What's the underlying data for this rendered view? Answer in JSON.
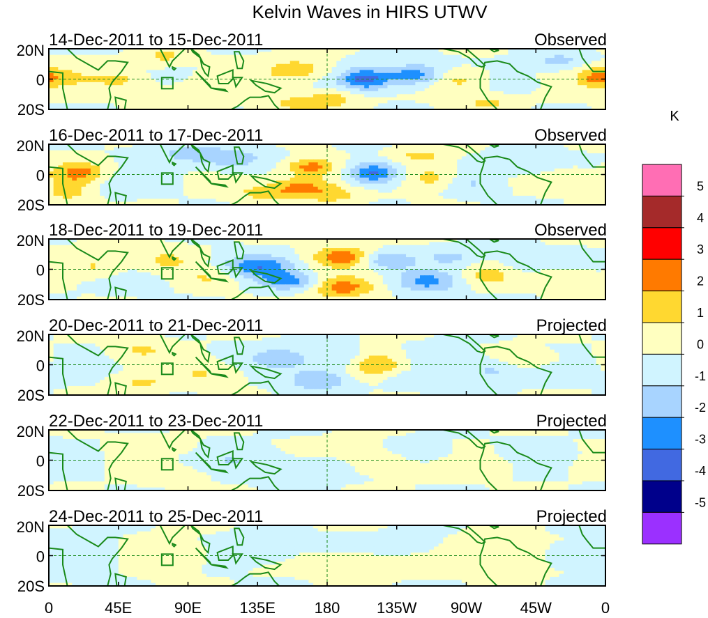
{
  "chart_data": {
    "type": "heatmap",
    "title": "Kelvin Waves in HIRS UTWV",
    "colorbar": {
      "unit": "K",
      "labels": [
        "5",
        "4",
        "3",
        "2",
        "1",
        "0",
        "-1",
        "-2",
        "-3",
        "-4",
        "-5"
      ],
      "bins": [
        {
          "range": ">5",
          "color": "#ff6eb4"
        },
        {
          "range": "4 to 5",
          "color": "#a52a2a"
        },
        {
          "range": "3 to 4",
          "color": "#ff0000"
        },
        {
          "range": "2 to 3",
          "color": "#ff7a00"
        },
        {
          "range": "1 to 2",
          "color": "#ffd830"
        },
        {
          "range": "0 to 1",
          "color": "#ffffc0"
        },
        {
          "range": "-1 to 0",
          "color": "#d0f4ff"
        },
        {
          "range": "-2 to -1",
          "color": "#a8d4ff"
        },
        {
          "range": "-3 to -2",
          "color": "#1e90ff"
        },
        {
          "range": "-4 to -3",
          "color": "#4169e1"
        },
        {
          "range": "-5 to -4",
          "color": "#00008b"
        },
        {
          "range": "<-5",
          "color": "#9b30ff"
        }
      ]
    },
    "x_axis": {
      "ticks": [
        "0",
        "45E",
        "90E",
        "135E",
        "180",
        "135W",
        "90W",
        "45W",
        "0"
      ],
      "range_deg_east": [
        0,
        360
      ]
    },
    "y_axis": {
      "ticks": [
        "20N",
        "0",
        "20S"
      ],
      "range_deg": [
        -20,
        20
      ]
    },
    "panels": [
      {
        "date_range": "14-Dec-2011 to 15-Dec-2011",
        "status": "Observed",
        "blobs": [
          [
            15,
            1.0,
            10,
            5,
            0.8
          ],
          [
            45,
            -0.5,
            12,
            4,
            1.2
          ],
          [
            75,
            15,
            10,
            4,
            1.3
          ],
          [
            88,
            -12,
            18,
            5,
            1.0
          ],
          [
            120,
            -2,
            16,
            5,
            0.6
          ],
          [
            160,
            6,
            14,
            5,
            1.8
          ],
          [
            165,
            -16,
            16,
            4,
            1.5
          ],
          [
            185,
            -12,
            12,
            4,
            1.0
          ],
          [
            205,
            0,
            12,
            5,
            -3.5
          ],
          [
            237,
            3,
            12,
            5,
            -2.6
          ],
          [
            265,
            -1,
            14,
            5,
            1.4
          ],
          [
            283,
            -16,
            12,
            4,
            1.2
          ],
          [
            300,
            -2,
            10,
            4,
            -1.0
          ],
          [
            330,
            12,
            12,
            4,
            -1.4
          ],
          [
            355,
            1,
            10,
            5,
            2.5
          ]
        ]
      },
      {
        "date_range": "16-Dec-2011 to 17-Dec-2011",
        "status": "Observed",
        "blobs": [
          [
            20,
            1.0,
            12,
            5,
            2.3
          ],
          [
            12,
            -12,
            10,
            5,
            1.3
          ],
          [
            50,
            -6,
            14,
            5,
            -0.7
          ],
          [
            90,
            14,
            18,
            5,
            -1.2
          ],
          [
            120,
            10,
            16,
            5,
            -1.4
          ],
          [
            140,
            -12,
            14,
            4,
            1.4
          ],
          [
            170,
            5,
            12,
            4,
            2.5
          ],
          [
            165,
            -8,
            14,
            5,
            2.2
          ],
          [
            185,
            -14,
            12,
            4,
            1.2
          ],
          [
            210,
            1,
            12,
            5,
            -3.3
          ],
          [
            240,
            12,
            12,
            4,
            1.3
          ],
          [
            247,
            -2,
            12,
            5,
            1.5
          ],
          [
            275,
            -6,
            12,
            5,
            -1.0
          ],
          [
            310,
            6,
            14,
            4,
            -1.2
          ],
          [
            335,
            -2,
            12,
            4,
            1.0
          ]
        ]
      },
      {
        "date_range": "18-Dec-2011 to 19-Dec-2011",
        "status": "Observed",
        "blobs": [
          [
            30,
            2.0,
            12,
            5,
            1.2
          ],
          [
            55,
            -10,
            14,
            4,
            -0.8
          ],
          [
            75,
            6,
            12,
            5,
            1.2
          ],
          [
            105,
            -6,
            14,
            5,
            1.0
          ],
          [
            135,
            2,
            16,
            5,
            -2.8
          ],
          [
            155,
            -8,
            14,
            4,
            -2.4
          ],
          [
            190,
            8,
            14,
            5,
            2.6
          ],
          [
            190,
            -12,
            14,
            5,
            2.5
          ],
          [
            218,
            6,
            12,
            4,
            -2.2
          ],
          [
            245,
            -8,
            14,
            5,
            -2.3
          ],
          [
            260,
            8,
            12,
            4,
            -1.2
          ],
          [
            285,
            -4,
            12,
            5,
            1.3
          ],
          [
            305,
            4,
            12,
            5,
            -0.8
          ],
          [
            335,
            -6,
            14,
            4,
            1.0
          ]
        ]
      },
      {
        "date_range": "20-Dec-2011 to 21-Dec-2011",
        "status": "Projected",
        "blobs": [
          [
            60,
            10,
            12,
            5,
            1.1
          ],
          [
            60,
            -12,
            12,
            4,
            1.1
          ],
          [
            100,
            -6,
            16,
            5,
            1.0
          ],
          [
            150,
            4,
            14,
            5,
            -1.8
          ],
          [
            175,
            -10,
            14,
            5,
            -2.1
          ],
          [
            190,
            4,
            12,
            5,
            -1.5
          ],
          [
            210,
            0,
            14,
            6,
            2.2
          ],
          [
            235,
            -10,
            12,
            4,
            -1.0
          ],
          [
            255,
            5,
            14,
            5,
            -0.8
          ],
          [
            285,
            -4,
            12,
            5,
            -1.3
          ],
          [
            310,
            4,
            12,
            4,
            1.0
          ],
          [
            335,
            -6,
            12,
            4,
            -0.7
          ]
        ]
      },
      {
        "date_range": "22-Dec-2011 to 23-Dec-2011",
        "status": "Projected",
        "blobs": [
          [
            70,
            10,
            14,
            4,
            0.8
          ],
          [
            80,
            -10,
            14,
            4,
            0.8
          ],
          [
            120,
            0,
            18,
            6,
            -0.8
          ],
          [
            165,
            -6,
            16,
            5,
            -1.1
          ],
          [
            190,
            8,
            14,
            4,
            0.6
          ],
          [
            215,
            -1,
            12,
            5,
            1.2
          ],
          [
            240,
            6,
            12,
            4,
            -1.0
          ],
          [
            280,
            -4,
            14,
            5,
            0.5
          ],
          [
            320,
            4,
            14,
            4,
            -0.4
          ]
        ]
      },
      {
        "date_range": "24-Dec-2011 to 25-Dec-2011",
        "status": "Projected",
        "blobs": [
          [
            20,
            0,
            20,
            8,
            -0.7
          ],
          [
            80,
            0,
            18,
            7,
            0.6
          ],
          [
            140,
            2,
            18,
            7,
            -0.4
          ],
          [
            200,
            -4,
            20,
            6,
            0.5
          ],
          [
            230,
            6,
            18,
            5,
            -0.5
          ],
          [
            290,
            0,
            22,
            7,
            0.4
          ],
          [
            345,
            0,
            14,
            6,
            -0.6
          ]
        ]
      }
    ]
  }
}
